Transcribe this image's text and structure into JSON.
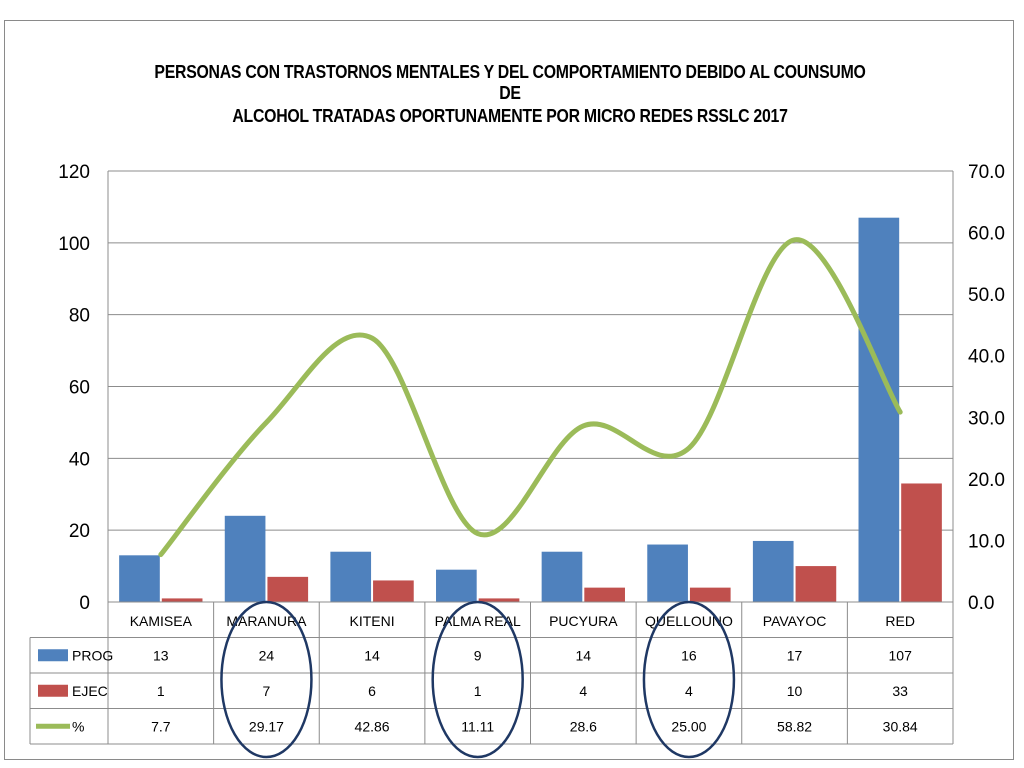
{
  "chart_data": {
    "type": "bar",
    "title_lines": [
      "PERSONAS CON TRASTORNOS MENTALES Y DEL COMPORTAMIENTO DEBIDO AL COUNSUMO DE",
      "ALCOHOL TRATADAS OPORTUNAMENTE  POR MICRO REDES RSSLC 2017"
    ],
    "categories": [
      "KAMISEA",
      "MARANURA",
      "KITENI",
      "PALMA REAL",
      "PUCYURA",
      "QUELLOUNO",
      "PAVAYOC",
      "RED"
    ],
    "left_axis": {
      "min": 0,
      "max": 120,
      "ticks": [
        "0",
        "20",
        "40",
        "60",
        "80",
        "100",
        "120"
      ]
    },
    "right_axis": {
      "min": 0,
      "max": 70,
      "ticks": [
        "0.0",
        "10.0",
        "20.0",
        "30.0",
        "40.0",
        "50.0",
        "60.0",
        "70.0"
      ]
    },
    "grid": true,
    "legend_placement": "data-table",
    "series": [
      {
        "name": "PROG",
        "type": "bar",
        "axis": "left",
        "color": "#4f81bd",
        "values": [
          13,
          24,
          14,
          9,
          14,
          16,
          17,
          107
        ],
        "labels": [
          "13",
          "24",
          "14",
          "9",
          "14",
          "16",
          "17",
          "107"
        ]
      },
      {
        "name": "EJEC",
        "type": "bar",
        "axis": "left",
        "color": "#c0504d",
        "values": [
          1,
          7,
          6,
          1,
          4,
          4,
          10,
          33
        ],
        "labels": [
          "1",
          "7",
          "6",
          "1",
          "4",
          "4",
          "10",
          "33"
        ]
      },
      {
        "name": "%",
        "type": "line",
        "axis": "right",
        "color": "#9bbb59",
        "values": [
          7.7,
          29.17,
          42.86,
          11.11,
          28.6,
          25.0,
          58.82,
          30.84
        ],
        "labels": [
          "7.7",
          "29.17",
          "42.86",
          "11.11",
          "28.6",
          "25.00",
          "58.82",
          "30.84"
        ]
      }
    ],
    "highlighted_categories": [
      "MARANURA",
      "PALMA REAL",
      "QUELLOUNO"
    ],
    "highlight_color": "#1f3864"
  }
}
